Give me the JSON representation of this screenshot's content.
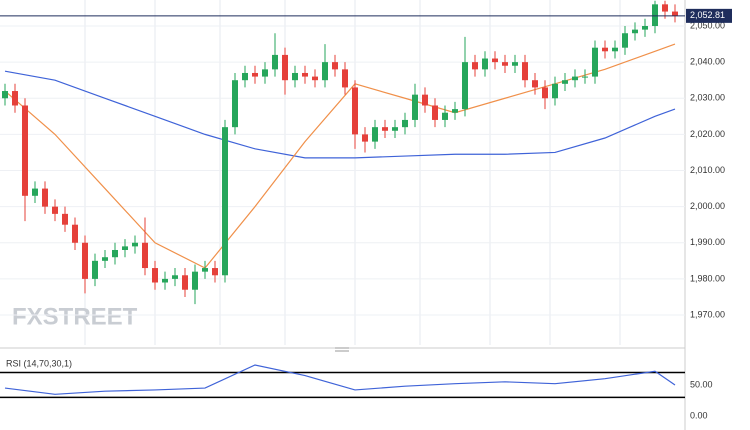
{
  "chart_data": [
    {
      "type": "candlestick",
      "watermark": "FXSTREET",
      "up_color": "#26a65b",
      "down_color": "#e5403a",
      "open": [
        2030,
        2032,
        2028,
        2003,
        2005,
        2000,
        1998,
        1995,
        1990,
        1980,
        1985,
        1986,
        1988,
        1989,
        1990,
        1983,
        1979,
        1980,
        1981,
        1977,
        1982,
        1983,
        1981,
        2022,
        2035,
        2037,
        2036,
        2038,
        2042,
        2035,
        2037,
        2036,
        2035,
        2040,
        2038,
        2033,
        2020,
        2018,
        2022,
        2021,
        2022,
        2024,
        2031,
        2028,
        2024,
        2026,
        2027,
        2040,
        2038,
        2041,
        2040,
        2039,
        2040,
        2035,
        2033,
        2030,
        2034,
        2035,
        2036,
        2036,
        2044,
        2043,
        2044,
        2048,
        2049,
        2050,
        2056,
        2054
      ],
      "high": [
        2034,
        2034,
        2030,
        2007,
        2007,
        2002,
        2000,
        1997,
        1992,
        1987,
        1988,
        1990,
        1991,
        1992,
        1997,
        1985,
        1982,
        1983,
        1983,
        1984,
        1985,
        1985,
        2024,
        2037,
        2039,
        2039,
        2040,
        2048,
        2044,
        2039,
        2039,
        2038,
        2045,
        2042,
        2040,
        2035,
        2022,
        2024,
        2024,
        2024,
        2026,
        2034,
        2033,
        2030,
        2028,
        2029,
        2047,
        2042,
        2043,
        2043,
        2042,
        2042,
        2042,
        2037,
        2035,
        2036,
        2037,
        2038,
        2038,
        2046,
        2046,
        2046,
        2050,
        2051,
        2052,
        2057,
        2057,
        2056
      ],
      "low": [
        2028,
        2026,
        1996,
        2001,
        1998,
        1996,
        1993,
        1988,
        1976,
        1978,
        1983,
        1984,
        1986,
        1987,
        1981,
        1977,
        1977,
        1978,
        1975,
        1973,
        1980,
        1979,
        1979,
        2020,
        2033,
        2034,
        2034,
        2036,
        2031,
        2033,
        2034,
        2033,
        2033,
        2036,
        2031,
        2016,
        2015,
        2016,
        2019,
        2019,
        2020,
        2022,
        2026,
        2022,
        2022,
        2024,
        2025,
        2036,
        2036,
        2038,
        2037,
        2037,
        2033,
        2031,
        2027,
        2028,
        2032,
        2033,
        2034,
        2034,
        2041,
        2041,
        2042,
        2046,
        2047,
        2048,
        2052,
        2051
      ],
      "close": [
        2032,
        2028,
        2003,
        2005,
        2000,
        1998,
        1995,
        1990,
        1980,
        1985,
        1986,
        1988,
        1989,
        1990,
        1983,
        1979,
        1980,
        1981,
        1977,
        1982,
        1983,
        1981,
        2022,
        2035,
        2037,
        2036,
        2038,
        2042,
        2035,
        2037,
        2036,
        2035,
        2040,
        2038,
        2033,
        2020,
        2018,
        2022,
        2021,
        2022,
        2024,
        2031,
        2028,
        2024,
        2026,
        2027,
        2040,
        2038,
        2041,
        2040,
        2039,
        2040,
        2035,
        2033,
        2030,
        2034,
        2035,
        2036,
        2036,
        2044,
        2043,
        2044,
        2048,
        2049,
        2050,
        2056,
        2054,
        2052.81
      ],
      "last_price": 2052.81,
      "last_price_label": "2,052.81",
      "last_price_color": "#1f2d5c",
      "series": [
        {
          "color": "#3f63d8",
          "x": [
            0,
            5,
            10,
            15,
            20,
            25,
            30,
            35,
            40,
            45,
            50,
            55,
            60,
            65,
            67
          ],
          "values": [
            2037.5,
            2035,
            2030,
            2025,
            2020,
            2016,
            2013.5,
            2013.5,
            2014,
            2014.5,
            2014.5,
            2015,
            2019,
            2025,
            2027
          ]
        },
        {
          "color": "#f0904a",
          "x": [
            0,
            5,
            10,
            15,
            20,
            25,
            30,
            35,
            40,
            45,
            50,
            55,
            60,
            65,
            67
          ],
          "values": [
            2032,
            2020,
            2005,
            1990,
            1983,
            2000,
            2018,
            2034,
            2030,
            2026,
            2030,
            2034,
            2038,
            2043,
            2045
          ]
        }
      ],
      "ylim": [
        1961.7,
        2057.2
      ],
      "yticks": [
        {
          "value": 1970,
          "label": "1,970.00"
        },
        {
          "value": 1980,
          "label": "1,980.00"
        },
        {
          "value": 1990,
          "label": "1,990.00"
        },
        {
          "value": 2000,
          "label": "2,000.00"
        },
        {
          "value": 2010,
          "label": "2,010.00"
        },
        {
          "value": 2020,
          "label": "2,020.00"
        },
        {
          "value": 2030,
          "label": "2,030.00"
        },
        {
          "value": 2040,
          "label": "2,040.00"
        },
        {
          "value": 2050,
          "label": "2,050.00"
        }
      ],
      "grid": true
    },
    {
      "type": "line",
      "title": "RSI (14,70,30,1)",
      "series": [
        {
          "color": "#3f63d8",
          "x": [
            0,
            5,
            10,
            15,
            20,
            25,
            30,
            35,
            40,
            45,
            50,
            55,
            60,
            65,
            67
          ],
          "values": [
            45,
            35,
            40,
            42,
            45,
            82,
            65,
            42,
            48,
            52,
            55,
            52,
            60,
            72,
            50
          ]
        }
      ],
      "levels": [
        70,
        30
      ],
      "ylim": [
        -19,
        98
      ],
      "yticks": [
        {
          "value": 0,
          "label": "0.00"
        },
        {
          "value": 50,
          "label": "50.00"
        }
      ]
    }
  ]
}
